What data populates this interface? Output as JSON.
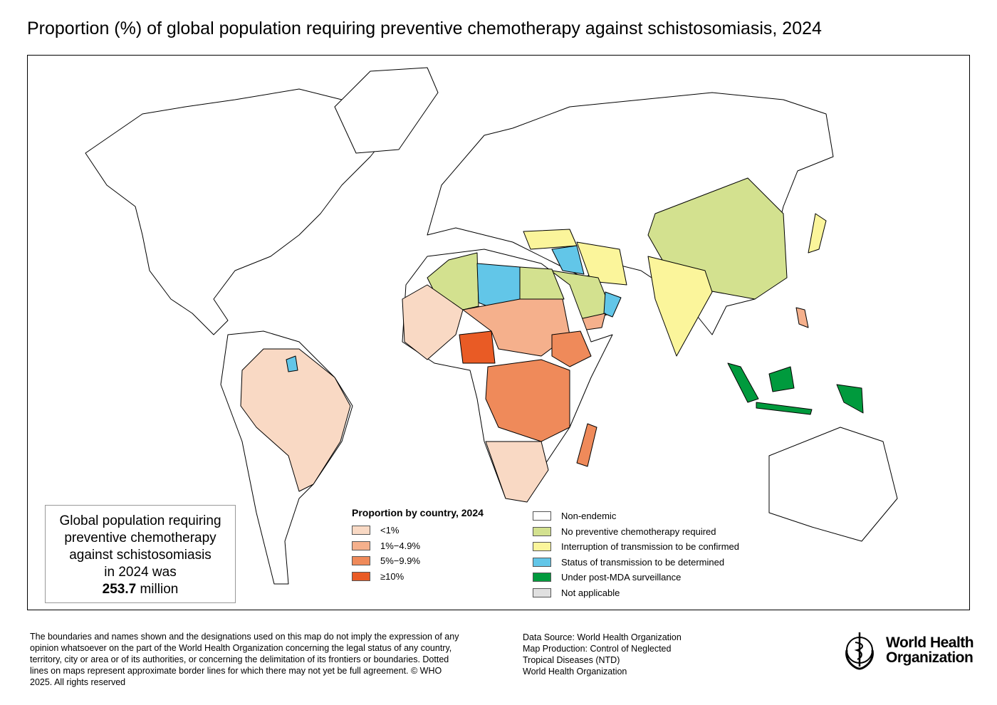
{
  "title": "Proportion (%) of global population requiring preventive chemotherapy against schistosomiasis, 2024",
  "infobox": {
    "lines": [
      "Global population requiring",
      "preventive chemotherapy",
      "against schistosomiasis",
      "in 2024 was"
    ],
    "value": "253.7",
    "unit": " million"
  },
  "legend_proportion": {
    "title": "Proportion by country, 2024",
    "items": [
      {
        "label": "<1%",
        "color": "#f9d9c4"
      },
      {
        "label": "1%−4.9%",
        "color": "#f5b08c"
      },
      {
        "label": "5%−9.9%",
        "color": "#ef8a5a"
      },
      {
        "label": "≥10%",
        "color": "#e95b25"
      }
    ]
  },
  "legend_status": {
    "items": [
      {
        "label": "Non-endemic",
        "color": "#ffffff"
      },
      {
        "label": "No preventive chemotherapy required",
        "color": "#d3e18f"
      },
      {
        "label": "Interruption of transmission to be confirmed",
        "color": "#fbf59b"
      },
      {
        "label": "Status of transmission to be determined",
        "color": "#62c6e8"
      },
      {
        "label": "Under post-MDA surveillance",
        "color": "#009a3d"
      },
      {
        "label": "Not applicable",
        "color": "#e0e0e0"
      }
    ]
  },
  "disclaimer": "The boundaries and names shown and the designations used on this map do not imply the expression of any opinion whatsoever on the part of the World Health Organization concerning the legal status of any country, territory, city or area or of its authorities, or concerning the delimitation of its frontiers or boundaries. Dotted lines on maps represent approximate border lines for which there may not yet be full agreement. © WHO 2025. All rights reserved",
  "source": [
    "Data Source: World Health Organization",
    "Map Production: Control of Neglected",
    "Tropical Diseases (NTD)",
    "World Health Organization"
  ],
  "logo": {
    "line1": "World Health",
    "line2": "Organization"
  }
}
